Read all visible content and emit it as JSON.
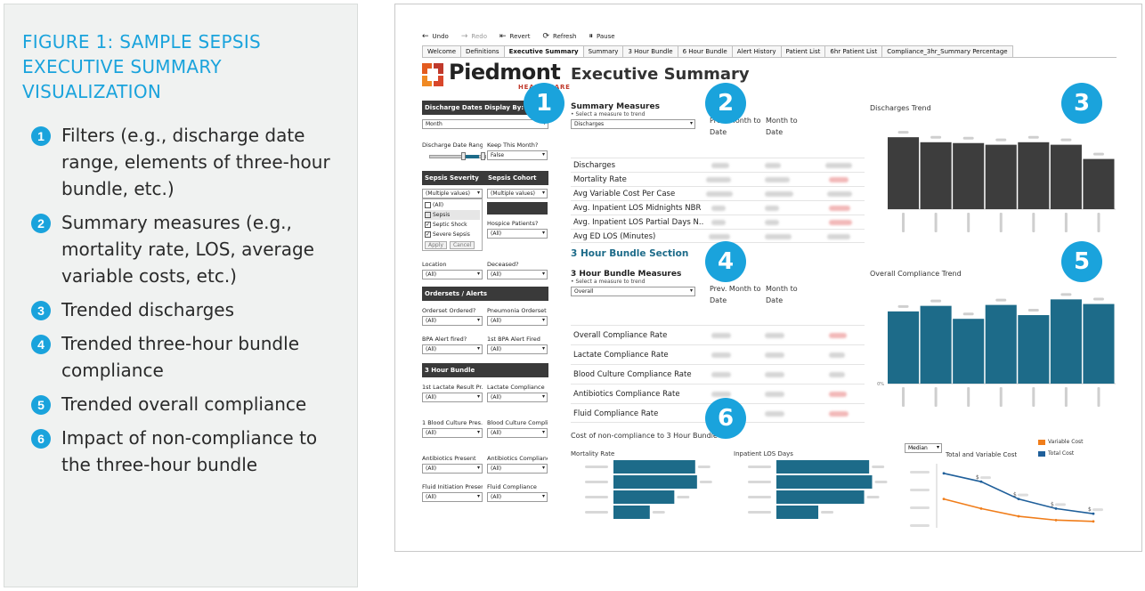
{
  "figure": {
    "title": "FIGURE 1: SAMPLE SEPSIS EXECUTIVE SUMMARY VISUALIZATION",
    "items": [
      {
        "num": "1",
        "text": "Filters (e.g., discharge date range, elements of three-hour bundle, etc.)"
      },
      {
        "num": "2",
        "text": "Summary measures (e.g., mortality rate, LOS, average variable costs, etc.)"
      },
      {
        "num": "3",
        "text": "Trended discharges"
      },
      {
        "num": "4",
        "text": "Trended three-hour bundle compliance"
      },
      {
        "num": "5",
        "text": "Trended overall compliance"
      },
      {
        "num": "6",
        "text": "Impact of non-compliance to the three-hour bundle"
      }
    ]
  },
  "toolbar": {
    "undo": "Undo",
    "redo": "Redo",
    "revert": "Revert",
    "refresh": "Refresh",
    "pause": "Pause"
  },
  "tabs": [
    "Welcome",
    "Definitions",
    "Executive Summary",
    "Summary",
    "3 Hour Bundle",
    "6 Hour Bundle",
    "Alert History",
    "Patient List",
    "6hr Patient List",
    "Compliance_3hr_Summary Percentage"
  ],
  "logo": {
    "name": "Piedmont",
    "sub": "HEALTHCARE"
  },
  "dashboard_title": "Executive Summary",
  "filters": {
    "discharge_header": "Discharge Dates Display By:",
    "discharge_value": "Month",
    "date_range_label": "Discharge Date Range",
    "keep_month_label": "Keep This Month?",
    "keep_month_value": "False",
    "severity_label": "Sepsis Severity",
    "cohort_label": "Sepsis Cohort",
    "severity_value": "(Multiple values)",
    "cohort_value": "(Multiple values)",
    "severity_options": [
      {
        "label": "(All)",
        "checked": false
      },
      {
        "label": "Sepsis",
        "checked": false
      },
      {
        "label": "Septic Shock",
        "checked": true
      },
      {
        "label": "Severe Sepsis",
        "checked": true
      }
    ],
    "apply": "Apply",
    "cancel": "Cancel",
    "hospice_label": "Hospice Patients?",
    "hospice_value": "(All)",
    "location_label": "Location",
    "location_value": "(All)",
    "deceased_label": "Deceased?",
    "deceased_value": "(All)",
    "orderset_header": "Ordersets / Alerts",
    "orderset_label": "Orderset Ordered?",
    "orderset_value": "(All)",
    "pneumonia_label": "Pneumonia Orderset ...",
    "pneumonia_value": "(All)",
    "bpa_label": "BPA Alert fired?",
    "bpa_value": "(All)",
    "bpa1_label": "1st BPA Alert Fired",
    "bpa1_value": "(All)",
    "bundle_header": "3 Hour Bundle",
    "lactate_result_label": "1st Lactate Result Pr...",
    "lactate_result_value": "(All)",
    "lactate_comp_label": "Lactate Compliance",
    "lactate_comp_value": "(All)",
    "blood_pres_label": "1 Blood Culture Pres...",
    "blood_pres_value": "(All)",
    "blood_comp_label": "Blood Culture Compli...",
    "blood_comp_value": "(All)",
    "abx_present_label": "Antibiotics Present",
    "abx_present_value": "(All)",
    "abx_comp_label": "Antibiotics Compliance",
    "abx_comp_value": "(All)",
    "fluid_init_label": "Fluid Initiation Present",
    "fluid_init_value": "(All)",
    "fluid_comp_label": "Fluid Compliance",
    "fluid_comp_value": "(All)"
  },
  "summary": {
    "title": "Summary Measures",
    "sub": "• Select a measure to trend",
    "select_value": "Discharges",
    "col1": "Prev. Month to Date",
    "col2": "Month to Date",
    "rows": [
      "Discharges",
      "Mortality Rate",
      "Avg Variable Cost Per Case",
      "Avg. Inpatient LOS Midnights NBR",
      "Avg. Inpatient LOS Partial Days N..",
      "Avg ED LOS (Minutes)"
    ]
  },
  "bundle_section": {
    "title": "3 Hour Bundle Section",
    "measures_title": "3 Hour Bundle Measures",
    "sub": "• Select a measure to trend",
    "select_value": "Overall",
    "col1": "Prev. Month to Date",
    "col2": "Month to Date",
    "rows": [
      "Overall Compliance Rate",
      "Lactate Compliance Rate",
      "Blood Culture Compliance Rate",
      "Antibiotics Compliance Rate",
      "Fluid Compliance Rate"
    ]
  },
  "charts": {
    "discharges_title": "Discharges Trend",
    "overall_title": "Overall Compliance Trend",
    "noncompliance_title": "Cost of non-compliance to 3 Hour Bundle",
    "mortality_title": "Mortality Rate",
    "los_title": "Inpatient LOS Days",
    "cost_title": "Total and Variable Cost",
    "median_value": "Median",
    "legend_variable": "Variable Cost",
    "legend_total": "Total Cost",
    "dollar": "$",
    "pct_label": "0%",
    "colors": {
      "dark": "#3d3d3d",
      "teal": "#1d6b89",
      "orange": "#f07d1a",
      "blue": "#1f5f9a"
    }
  },
  "chart_data": [
    {
      "type": "bar",
      "title": "Discharges Trend",
      "values": [
        0.86,
        0.8,
        0.79,
        0.77,
        0.8,
        0.77,
        0.6
      ]
    },
    {
      "type": "bar",
      "title": "Overall Compliance Trend",
      "values": [
        0.78,
        0.84,
        0.7,
        0.85,
        0.74,
        0.91,
        0.86
      ]
    },
    {
      "type": "bar",
      "title": "Mortality Rate",
      "values": [
        0.9,
        0.92,
        0.67,
        0.4
      ]
    },
    {
      "type": "bar",
      "title": "Inpatient LOS Days",
      "values": [
        0.93,
        0.96,
        0.88,
        0.42
      ]
    },
    {
      "type": "line",
      "title": "Total and Variable Cost",
      "series": [
        {
          "name": "Total Cost",
          "values": [
            0.85,
            0.72,
            0.45,
            0.3,
            0.22
          ]
        },
        {
          "name": "Variable Cost",
          "values": [
            0.45,
            0.3,
            0.18,
            0.12,
            0.1
          ]
        }
      ]
    }
  ]
}
